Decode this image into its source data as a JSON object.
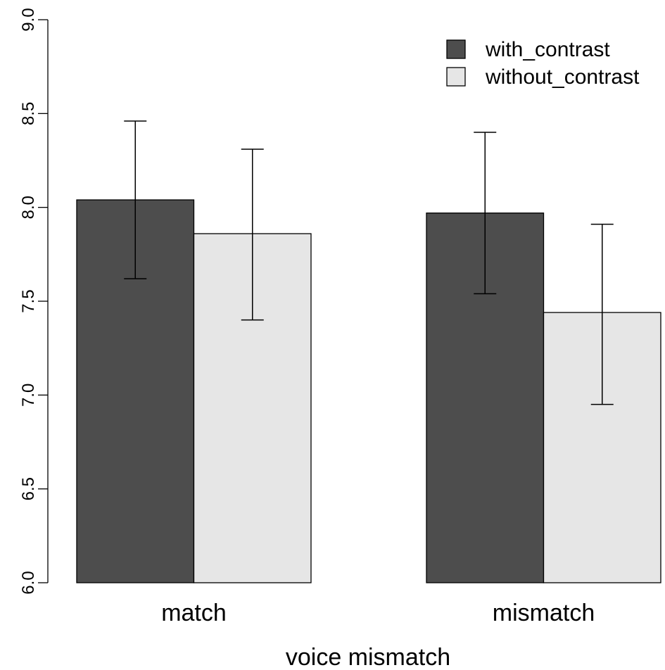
{
  "chart_data": {
    "type": "bar",
    "categories": [
      "match",
      "mismatch"
    ],
    "series": [
      {
        "name": "with_contrast",
        "color": "#4d4d4d",
        "values": [
          8.04,
          7.97
        ],
        "error_low": [
          7.62,
          7.54
        ],
        "error_high": [
          8.46,
          8.4
        ]
      },
      {
        "name": "without_contrast",
        "color": "#e6e6e6",
        "values": [
          7.86,
          7.44
        ],
        "error_low": [
          7.4,
          6.95
        ],
        "error_high": [
          8.31,
          7.91
        ]
      }
    ],
    "title": "",
    "xlabel": "voice mismatch",
    "ylabel": "",
    "ylim": [
      6.0,
      9.0
    ],
    "yticks": [
      "6.0",
      "6.5",
      "7.0",
      "7.5",
      "8.0",
      "8.5",
      "9.0"
    ],
    "legend_position": "top-right",
    "grid": false
  }
}
